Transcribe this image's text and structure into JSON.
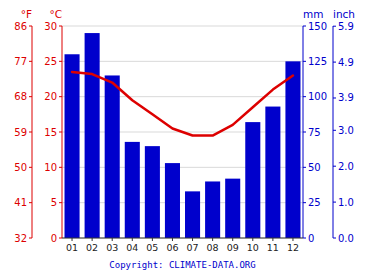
{
  "chart_data": {
    "type": "bar",
    "categories": [
      "01",
      "02",
      "03",
      "04",
      "05",
      "06",
      "07",
      "08",
      "09",
      "10",
      "11",
      "12"
    ],
    "series": [
      {
        "type": "bar",
        "axis": "y2",
        "color": "#0000cc",
        "values": [
          130,
          145,
          115,
          68,
          65,
          53,
          33,
          40,
          42,
          82,
          93,
          125
        ]
      },
      {
        "type": "line",
        "color": "#dd0000",
        "values": [
          23.5,
          23.2,
          22.0,
          19.5,
          17.5,
          15.5,
          14.5,
          14.5,
          16.0,
          18.5,
          21.0,
          23.0
        ]
      }
    ],
    "y_label": "°C",
    "ylim": [
      0,
      30
    ],
    "yticks": [
      0,
      5,
      10,
      15,
      20,
      25,
      30
    ],
    "y2_label": "mm",
    "y2lim": [
      0,
      150
    ],
    "y2ticks": [
      0,
      25,
      50,
      75,
      100,
      125,
      150
    ],
    "y3_label": "°F",
    "y3ticks": [
      {
        "value": 0,
        "label": "32"
      },
      {
        "value": 5,
        "label": "41"
      },
      {
        "value": 10,
        "label": "50"
      },
      {
        "value": 15,
        "label": "59"
      },
      {
        "value": 20,
        "label": "68"
      },
      {
        "value": 25,
        "label": "77"
      },
      {
        "value": 30,
        "label": "86"
      }
    ],
    "y4_label": "inch",
    "y4ticks": [
      {
        "value": 0,
        "label": "0.0"
      },
      {
        "value": 25.4,
        "label": "1.0"
      },
      {
        "value": 50.8,
        "label": "2.0"
      },
      {
        "value": 76.2,
        "label": "3.0"
      },
      {
        "value": 99.06,
        "label": "3.9"
      },
      {
        "value": 124.46,
        "label": "4.9"
      },
      {
        "value": 149.86,
        "label": "5.9"
      }
    ],
    "grid": true,
    "annotations": [
      "Copyright: CLIMATE-DATA.ORG"
    ]
  }
}
